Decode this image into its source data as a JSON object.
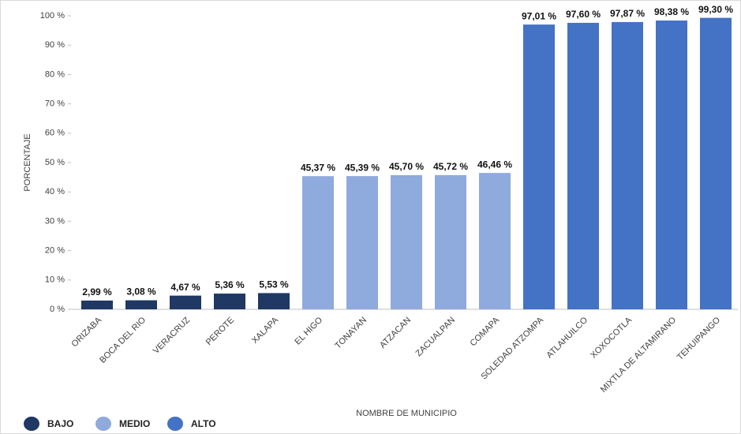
{
  "chart_data": {
    "type": "bar",
    "y_label": "PORCENTAJE",
    "x_label": "NOMBRE DE MUNICIPIO",
    "categories": [
      "ORIZABA",
      "BOCA DEL RIO",
      "VERACRUZ",
      "PEROTE",
      "XALAPA",
      "EL HIGO",
      "TONAYAN",
      "ATZACAN",
      "ZACUALPAN",
      "COMAPA",
      "SOLEDAD ATZOMPA",
      "ATLAHUILCO",
      "XOXOCOTLA",
      "MIXTLA DE ALTAMIRANO",
      "TEHUIPANGO"
    ],
    "series": [
      {
        "name": "BAJO",
        "color": "#1f3864",
        "values": [
          2.99,
          3.08,
          4.67,
          5.36,
          5.53,
          null,
          null,
          null,
          null,
          null,
          null,
          null,
          null,
          null,
          null
        ],
        "value_labels": [
          "2,99 %",
          "3,08 %",
          "4,67 %",
          "5,36 %",
          "5,53 %",
          null,
          null,
          null,
          null,
          null,
          null,
          null,
          null,
          null,
          null
        ]
      },
      {
        "name": "MEDIO",
        "color": "#8faadc",
        "values": [
          null,
          null,
          null,
          null,
          null,
          45.37,
          45.39,
          45.7,
          45.72,
          46.46,
          null,
          null,
          null,
          null,
          null
        ],
        "value_labels": [
          null,
          null,
          null,
          null,
          null,
          "45,37 %",
          "45,39 %",
          "45,70 %",
          "45,72 %",
          "46,46 %",
          null,
          null,
          null,
          null,
          null
        ]
      },
      {
        "name": "ALTO",
        "color": "#4472c4",
        "values": [
          null,
          null,
          null,
          null,
          null,
          null,
          null,
          null,
          null,
          null,
          97.01,
          97.6,
          97.87,
          98.38,
          99.3
        ],
        "value_labels": [
          null,
          null,
          null,
          null,
          null,
          null,
          null,
          null,
          null,
          null,
          "97,01 %",
          "97,60 %",
          "97,87 %",
          "98,38 %",
          "99,30 %"
        ]
      }
    ],
    "ylim": [
      0,
      100
    ],
    "yticks": [
      {
        "value": 0,
        "label": "0 %"
      },
      {
        "value": 10,
        "label": "10 %"
      },
      {
        "value": 20,
        "label": "20 %"
      },
      {
        "value": 30,
        "label": "30 %"
      },
      {
        "value": 40,
        "label": "40 %"
      },
      {
        "value": 50,
        "label": "50 %"
      },
      {
        "value": 60,
        "label": "60 %"
      },
      {
        "value": 70,
        "label": "70 %"
      },
      {
        "value": 80,
        "label": "80 %"
      },
      {
        "value": 90,
        "label": "90 %"
      },
      {
        "value": 100,
        "label": "100 %"
      }
    ],
    "legend": "bottom-left"
  }
}
